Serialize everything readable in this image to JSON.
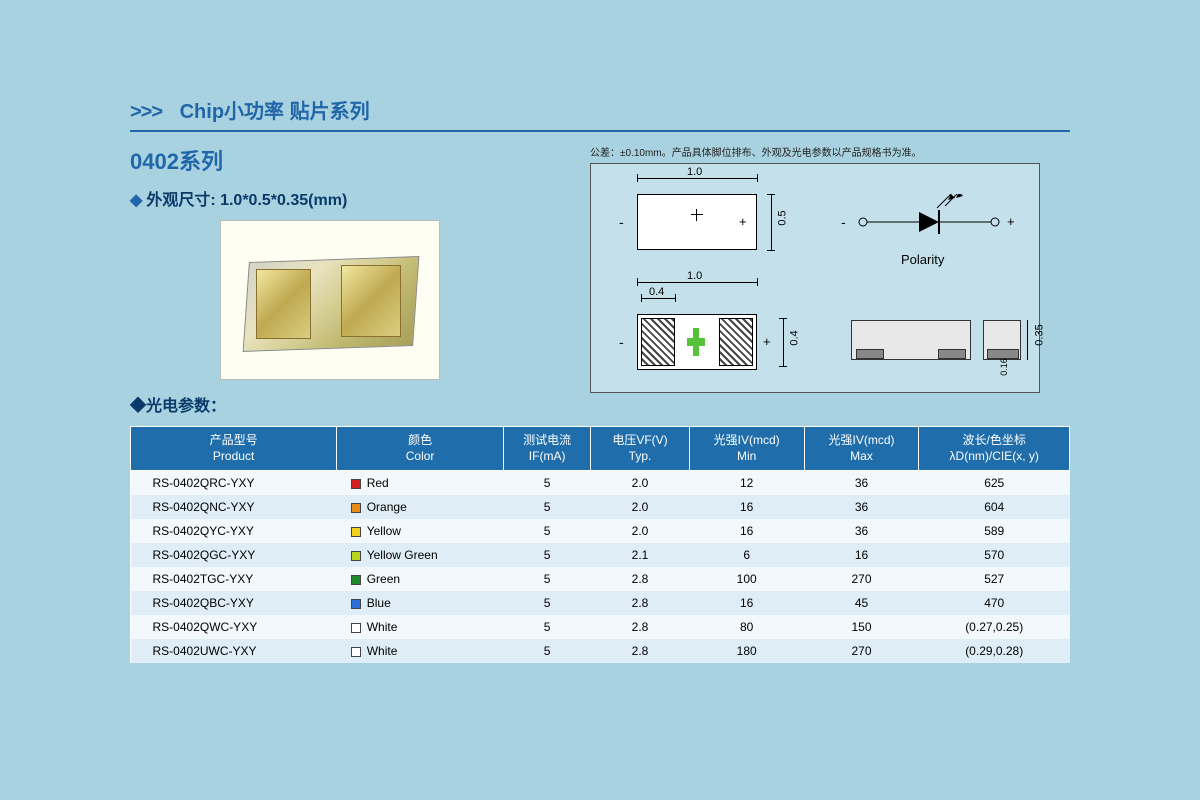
{
  "page": {
    "background_color": "#a8d2e0",
    "accent_color": "#2266aa",
    "text_dark": "#0a3a6a"
  },
  "header": {
    "arrows": ">>>",
    "title_cn": "Chip小功率    贴片系列"
  },
  "series": {
    "title": "0402系列",
    "dimensions_label": "外观尺寸: 1.0*0.5*0.35(mm)",
    "params_label": "光电参数：",
    "tolerance_note": "公差：±0.10mm。产品具体脚位排布、外观及光电参数以产品规格书为准。"
  },
  "diagram": {
    "top_width": "1.0",
    "top_height": "0.5",
    "bot_width": "1.0",
    "pad_width": "0.4",
    "pad_height": "0.4",
    "side_h": "0.35",
    "side_gap": "0.16",
    "polarity": "Polarity",
    "minus": "-",
    "plus": "+"
  },
  "table": {
    "headers": [
      {
        "cn": "产品型号",
        "en": "Product"
      },
      {
        "cn": "颜色",
        "en": "Color"
      },
      {
        "cn": "测试电流",
        "en": "IF(mA)"
      },
      {
        "cn": "电压VF(V)",
        "en": "Typ."
      },
      {
        "cn": "光强IV(mcd)",
        "en": "Min"
      },
      {
        "cn": "光强IV(mcd)",
        "en": "Max"
      },
      {
        "cn": "波长/色坐标",
        "en": "λD(nm)/CIE(x, y)"
      }
    ],
    "header_bg": "#1f6daa",
    "header_fg": "#ffffff",
    "row_odd_bg": "#f2f8fb",
    "row_even_bg": "#dfeef6",
    "rows": [
      {
        "product": "RS-0402QRC-YXY",
        "color": "Red",
        "swatch": "#d21f1f",
        "if": "5",
        "vf": "2.0",
        "ivmin": "12",
        "ivmax": "36",
        "wl": "625"
      },
      {
        "product": "RS-0402QNC-YXY",
        "color": "Orange",
        "swatch": "#e68a1a",
        "if": "5",
        "vf": "2.0",
        "ivmin": "16",
        "ivmax": "36",
        "wl": "604"
      },
      {
        "product": "RS-0402QYC-YXY",
        "color": "Yellow",
        "swatch": "#f2d21f",
        "if": "5",
        "vf": "2.0",
        "ivmin": "16",
        "ivmax": "36",
        "wl": "589"
      },
      {
        "product": "RS-0402QGC-YXY",
        "color": "Yellow Green",
        "swatch": "#b6d61f",
        "if": "5",
        "vf": "2.1",
        "ivmin": "6",
        "ivmax": "16",
        "wl": "570"
      },
      {
        "product": "RS-0402TGC-YXY",
        "color": "Green",
        "swatch": "#1f8a2a",
        "if": "5",
        "vf": "2.8",
        "ivmin": "100",
        "ivmax": "270",
        "wl": "527"
      },
      {
        "product": "RS-0402QBC-YXY",
        "color": "Blue",
        "swatch": "#2a6fd6",
        "if": "5",
        "vf": "2.8",
        "ivmin": "16",
        "ivmax": "45",
        "wl": "470"
      },
      {
        "product": "RS-0402QWC-YXY",
        "color": "White",
        "swatch": "#ffffff",
        "if": "5",
        "vf": "2.8",
        "ivmin": "80",
        "ivmax": "150",
        "wl": "(0.27,0.25)"
      },
      {
        "product": "RS-0402UWC-YXY",
        "color": "White",
        "swatch": "#ffffff",
        "if": "5",
        "vf": "2.8",
        "ivmin": "180",
        "ivmax": "270",
        "wl": "(0.29,0.28)"
      }
    ]
  }
}
